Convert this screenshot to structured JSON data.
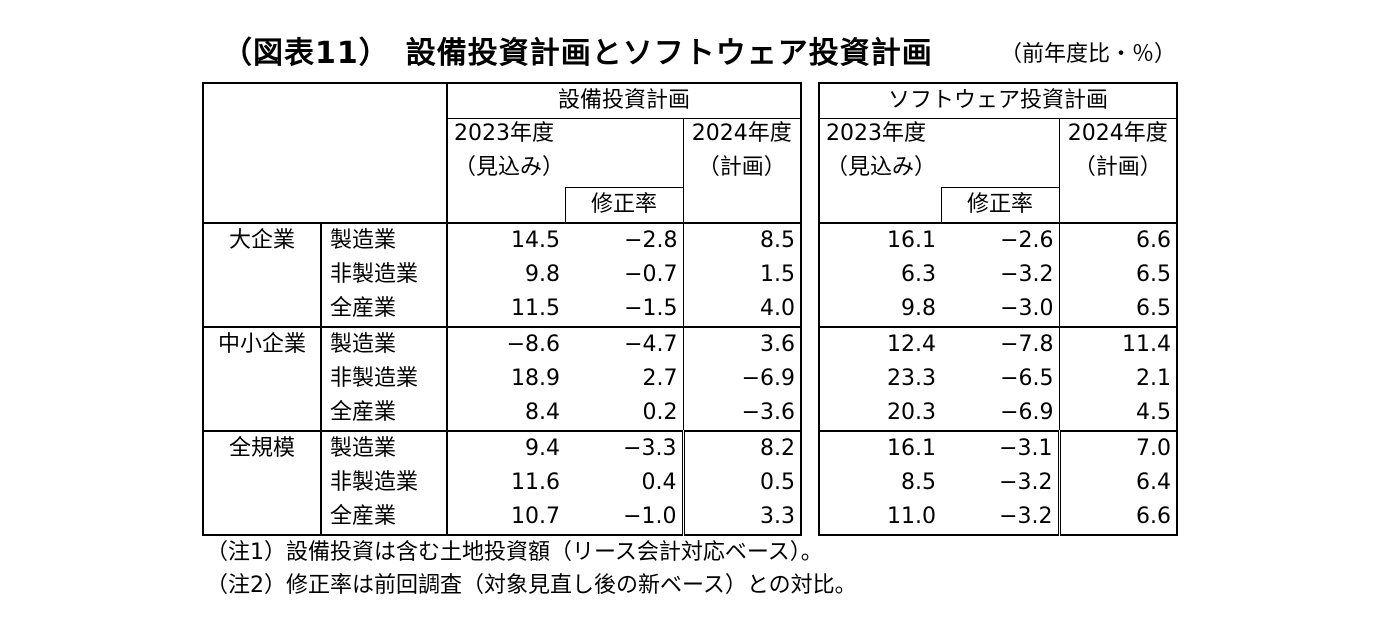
{
  "title": "（図表11）　設備投資計画とソフトウェア投資計画",
  "unit": "（前年度比・％）",
  "headers": {
    "capex_group": "設備投資計画",
    "software_group": "ソフトウェア投資計画",
    "fy2023_line1": "2023年度",
    "fy2023_line2": "（見込み）",
    "revision": "修正率",
    "fy2024_line1": "2024年度",
    "fy2024_line2": "（計画）"
  },
  "rows": [
    {
      "size": "大企業",
      "sector": "製造業",
      "capex": [
        "14.5",
        "−2.8",
        "8.5"
      ],
      "software": [
        "16.1",
        "−2.6",
        "6.6"
      ]
    },
    {
      "size": "",
      "sector": "非製造業",
      "capex": [
        "9.8",
        "−0.7",
        "1.5"
      ],
      "software": [
        "6.3",
        "−3.2",
        "6.5"
      ]
    },
    {
      "size": "",
      "sector": "全産業",
      "capex": [
        "11.5",
        "−1.5",
        "4.0"
      ],
      "software": [
        "9.8",
        "−3.0",
        "6.5"
      ]
    },
    {
      "size": "中小企業",
      "sector": "製造業",
      "capex": [
        "−8.6",
        "−4.7",
        "3.6"
      ],
      "software": [
        "12.4",
        "−7.8",
        "11.4"
      ]
    },
    {
      "size": "",
      "sector": "非製造業",
      "capex": [
        "18.9",
        "2.7",
        "−6.9"
      ],
      "software": [
        "23.3",
        "−6.5",
        "2.1"
      ]
    },
    {
      "size": "",
      "sector": "全産業",
      "capex": [
        "8.4",
        "0.2",
        "−3.6"
      ],
      "software": [
        "20.3",
        "−6.9",
        "4.5"
      ]
    },
    {
      "size": "全規模",
      "sector": "製造業",
      "capex": [
        "9.4",
        "−3.3",
        "8.2"
      ],
      "software": [
        "16.1",
        "−3.1",
        "7.0"
      ]
    },
    {
      "size": "",
      "sector": "非製造業",
      "capex": [
        "11.6",
        "0.4",
        "0.5"
      ],
      "software": [
        "8.5",
        "−3.2",
        "6.4"
      ]
    },
    {
      "size": "",
      "sector": "全産業",
      "capex": [
        "10.7",
        "−1.0",
        "3.3"
      ],
      "software": [
        "11.0",
        "−3.2",
        "6.6"
      ]
    }
  ],
  "notes": [
    "（注1）設備投資は含む土地投資額（リース会計対応ベース）。",
    "（注2）修正率は前回調査（対象見直し後の新ベース）との対比。"
  ]
}
